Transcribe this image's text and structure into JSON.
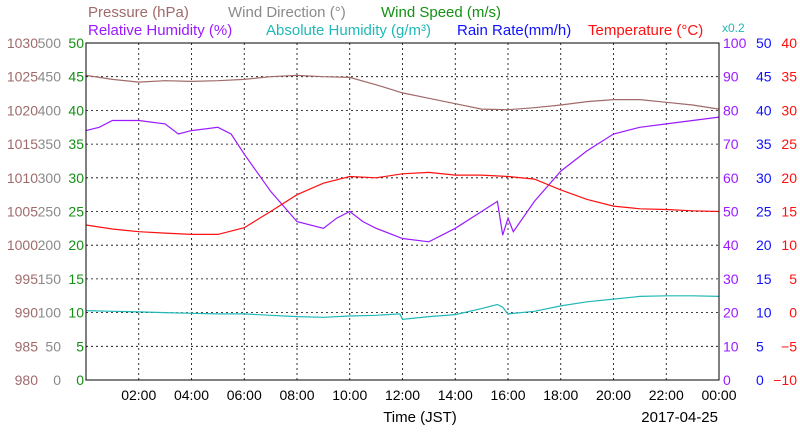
{
  "chart_data": {
    "type": "line",
    "xlabel": "Time (JST)",
    "date_label": "2017-04-25",
    "x_ticks": [
      "02:00",
      "04:00",
      "06:00",
      "08:00",
      "10:00",
      "12:00",
      "14:00",
      "16:00",
      "18:00",
      "20:00",
      "22:00",
      "00:00"
    ],
    "xlim_hours": [
      0,
      24
    ],
    "legend": [
      {
        "text": "Pressure (hPa)",
        "color": "#a06a6a"
      },
      {
        "text": "Wind Direction (°)",
        "color": "#8a8a8a"
      },
      {
        "text": "Wind Speed (m/s)",
        "color": "#149014"
      },
      {
        "text": "Relative Humidity (%)",
        "color": "#9b1aff"
      },
      {
        "text": "Absolute Humidity (g/m³)",
        "color": "#20b8b8"
      },
      {
        "text": "Rain Rate(mm/h)",
        "color": "#1010ff"
      },
      {
        "text": "Temperature (°C)",
        "color": "#ff1010"
      }
    ],
    "x02_label": "x0.2",
    "axes": {
      "pressure": {
        "color": "#a06a6a",
        "ticks": [
          "1030",
          "1025",
          "1020",
          "1015",
          "1010",
          "1005",
          "1000",
          "995",
          "990",
          "985",
          "980"
        ],
        "range": [
          980,
          1030
        ]
      },
      "wind_direction": {
        "color": "#8a8a8a",
        "ticks": [
          "500",
          "450",
          "400",
          "350",
          "300",
          "250",
          "200",
          "150",
          "100",
          "50",
          "0"
        ],
        "range": [
          0,
          500
        ]
      },
      "wind_speed": {
        "color": "#149014",
        "ticks": [
          "50",
          "45",
          "40",
          "35",
          "30",
          "25",
          "20",
          "15",
          "10",
          "5",
          "0"
        ],
        "range": [
          0,
          50
        ]
      },
      "relative_humidity": {
        "color": "#9b1aff",
        "ticks": [
          "100",
          "90",
          "80",
          "70",
          "60",
          "50",
          "40",
          "30",
          "20",
          "10",
          "0"
        ],
        "range": [
          0,
          100
        ]
      },
      "rain_rate": {
        "color": "#1010ff",
        "ticks": [
          "50",
          "45",
          "40",
          "35",
          "30",
          "25",
          "20",
          "15",
          "10",
          "5",
          "0"
        ],
        "range": [
          0,
          50
        ]
      },
      "temperature": {
        "color": "#ff1010",
        "ticks": [
          "40",
          "35",
          "30",
          "25",
          "20",
          "15",
          "10",
          "5",
          "0",
          "−5",
          "−10"
        ],
        "range": [
          -10,
          40
        ]
      }
    },
    "series": [
      {
        "key": "pressure",
        "color": "#a06a6a",
        "x": [
          0,
          1,
          2,
          3,
          4,
          5,
          6,
          7,
          8,
          9,
          10,
          11,
          12,
          13,
          14,
          15,
          16,
          17,
          18,
          19,
          20,
          21,
          22,
          23,
          24
        ],
        "values": [
          1025.2,
          1024.6,
          1024.2,
          1024.4,
          1024.3,
          1024.4,
          1024.6,
          1025.0,
          1025.2,
          1025.0,
          1024.9,
          1023.8,
          1022.6,
          1021.8,
          1021.0,
          1020.2,
          1020.1,
          1020.4,
          1020.8,
          1021.3,
          1021.6,
          1021.6,
          1021.2,
          1020.8,
          1020.2
        ]
      },
      {
        "key": "relative_humidity",
        "color": "#9b1aff",
        "x": [
          0,
          0.5,
          1,
          2,
          3,
          3.5,
          4,
          5,
          5.5,
          6,
          7,
          8,
          9,
          9.5,
          10,
          10.5,
          11,
          12,
          13,
          14,
          15,
          15.6,
          15.8,
          16,
          16.2,
          17,
          18,
          19,
          20,
          21,
          22,
          23,
          24
        ],
        "values": [
          74,
          75,
          77,
          77,
          76,
          73,
          74,
          75,
          73,
          67,
          56,
          47,
          45,
          48,
          50,
          47,
          45,
          42,
          41,
          45,
          50,
          53,
          43,
          48,
          44,
          53,
          62,
          68,
          73,
          75,
          76,
          77,
          78
        ]
      },
      {
        "key": "absolute_humidity",
        "color": "#20b8b8",
        "x": [
          0,
          1,
          2,
          3,
          4,
          5,
          6,
          7,
          8,
          9,
          10,
          11,
          11.9,
          12,
          13,
          14,
          15,
          15.6,
          15.8,
          16,
          17,
          18,
          19,
          20,
          21,
          22,
          23,
          24
        ],
        "values": [
          10.3,
          10.2,
          10.1,
          10.0,
          9.9,
          9.8,
          9.8,
          9.6,
          9.4,
          9.3,
          9.5,
          9.6,
          9.8,
          9.0,
          9.4,
          9.7,
          10.6,
          11.2,
          10.8,
          9.8,
          10.2,
          11.0,
          11.6,
          12.0,
          12.4,
          12.5,
          12.5,
          12.4
        ]
      },
      {
        "key": "temperature",
        "color": "#ff1010",
        "x": [
          0,
          1,
          2,
          3,
          4,
          5,
          6,
          7,
          8,
          9,
          10,
          11,
          12,
          13,
          14,
          15,
          16,
          17,
          18,
          19,
          20,
          21,
          22,
          23,
          24
        ],
        "values": [
          13.0,
          12.4,
          12.0,
          11.8,
          11.6,
          11.6,
          12.6,
          15.0,
          17.5,
          19.2,
          20.2,
          20.0,
          20.6,
          20.8,
          20.4,
          20.4,
          20.2,
          19.8,
          18.2,
          16.8,
          15.8,
          15.4,
          15.3,
          15.1,
          15.0
        ]
      }
    ]
  }
}
